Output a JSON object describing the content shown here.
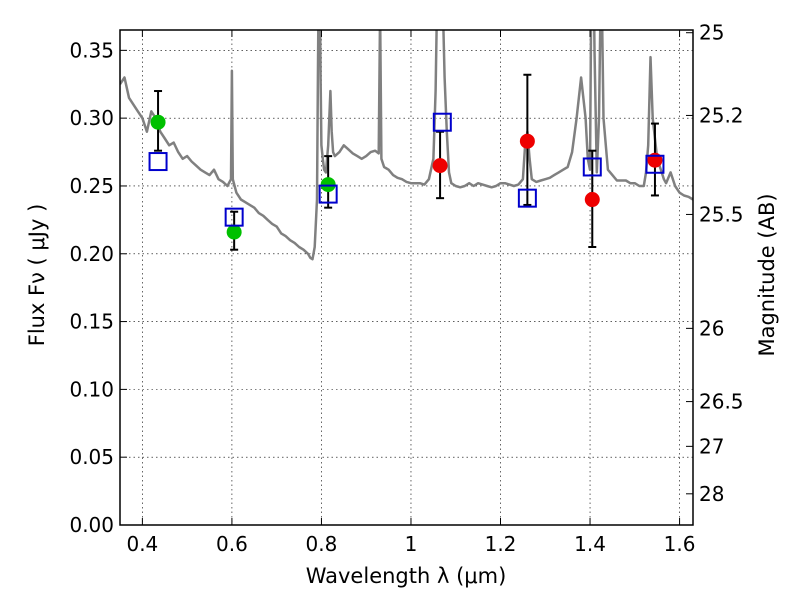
{
  "chart_data": {
    "type": "scatter",
    "xlabel": "Wavelength  λ (μm)",
    "ylabel": "Flux  Fν  ( μJy )",
    "y2label": "Magnitude (AB)",
    "xlim": [
      0.35,
      1.63
    ],
    "ylim": [
      0.0,
      0.365
    ],
    "grid": true,
    "x_ticks": [
      0.4,
      0.6,
      0.8,
      1.0,
      1.2,
      1.4,
      1.6
    ],
    "x_tick_labels": [
      "0.4",
      "0.6",
      "0.8",
      "1",
      "1.2",
      "1.4",
      "1.6"
    ],
    "y_ticks": [
      0.0,
      0.05,
      0.1,
      0.15,
      0.2,
      0.25,
      0.3,
      0.35
    ],
    "y_tick_labels": [
      "0.00",
      "0.05",
      "0.10",
      "0.15",
      "0.20",
      "0.25",
      "0.30",
      "0.35"
    ],
    "y2_ticks": [
      {
        "label": "25",
        "flux": 0.363
      },
      {
        "label": "25.2",
        "flux": 0.302
      },
      {
        "label": "25.5",
        "flux": 0.229
      },
      {
        "label": "26",
        "flux": 0.145
      },
      {
        "label": "26.5",
        "flux": 0.091
      },
      {
        "label": "27",
        "flux": 0.058
      },
      {
        "label": "28",
        "flux": 0.023
      }
    ],
    "colors": {
      "model": "#808080",
      "green": "#00c000",
      "red": "#ee0000",
      "square": "#0000cc",
      "errorbar": "#000000"
    },
    "series": [
      {
        "kind": "line",
        "color": "#808080",
        "x": [
          0.35,
          0.36,
          0.37,
          0.38,
          0.39,
          0.4,
          0.41,
          0.42,
          0.43,
          0.44,
          0.45,
          0.46,
          0.47,
          0.48,
          0.49,
          0.5,
          0.51,
          0.52,
          0.53,
          0.54,
          0.55,
          0.56,
          0.57,
          0.58,
          0.59,
          0.598,
          0.6,
          0.602,
          0.61,
          0.62,
          0.63,
          0.64,
          0.65,
          0.66,
          0.67,
          0.68,
          0.69,
          0.7,
          0.71,
          0.72,
          0.73,
          0.74,
          0.75,
          0.76,
          0.77,
          0.775,
          0.78,
          0.785,
          0.79,
          0.792,
          0.795,
          0.798,
          0.8,
          0.803,
          0.806,
          0.81,
          0.815,
          0.82,
          0.823,
          0.826,
          0.83,
          0.84,
          0.85,
          0.86,
          0.87,
          0.88,
          0.89,
          0.9,
          0.91,
          0.92,
          0.928,
          0.931,
          0.934,
          0.94,
          0.95,
          0.96,
          0.97,
          0.98,
          0.99,
          1.0,
          1.01,
          1.02,
          1.03,
          1.04,
          1.05,
          1.055,
          1.06,
          1.065,
          1.07,
          1.075,
          1.08,
          1.085,
          1.09,
          1.1,
          1.11,
          1.12,
          1.13,
          1.14,
          1.15,
          1.16,
          1.17,
          1.18,
          1.19,
          1.2,
          1.21,
          1.22,
          1.23,
          1.24,
          1.25,
          1.255,
          1.26,
          1.265,
          1.27,
          1.28,
          1.29,
          1.3,
          1.31,
          1.32,
          1.33,
          1.34,
          1.35,
          1.36,
          1.37,
          1.38,
          1.39,
          1.395,
          1.4,
          1.405,
          1.41,
          1.415,
          1.42,
          1.425,
          1.43,
          1.44,
          1.45,
          1.46,
          1.47,
          1.48,
          1.49,
          1.5,
          1.51,
          1.52,
          1.525,
          1.53,
          1.535,
          1.54,
          1.55,
          1.56,
          1.565,
          1.57,
          1.58,
          1.59,
          1.6,
          1.61,
          1.62,
          1.63
        ],
        "y": [
          0.325,
          0.33,
          0.315,
          0.31,
          0.305,
          0.3,
          0.29,
          0.305,
          0.3,
          0.29,
          0.285,
          0.28,
          0.282,
          0.275,
          0.27,
          0.272,
          0.268,
          0.265,
          0.262,
          0.26,
          0.258,
          0.262,
          0.255,
          0.253,
          0.25,
          0.255,
          0.335,
          0.255,
          0.245,
          0.24,
          0.238,
          0.236,
          0.234,
          0.23,
          0.228,
          0.225,
          0.222,
          0.22,
          0.215,
          0.213,
          0.21,
          0.208,
          0.205,
          0.203,
          0.2,
          0.197,
          0.196,
          0.205,
          0.24,
          0.33,
          0.45,
          0.33,
          0.28,
          0.27,
          0.262,
          0.26,
          0.28,
          0.32,
          0.29,
          0.275,
          0.272,
          0.275,
          0.28,
          0.277,
          0.274,
          0.272,
          0.27,
          0.272,
          0.275,
          0.276,
          0.274,
          0.38,
          0.27,
          0.264,
          0.262,
          0.258,
          0.256,
          0.255,
          0.253,
          0.252,
          0.252,
          0.252,
          0.251,
          0.255,
          0.27,
          0.32,
          0.42,
          0.5,
          0.4,
          0.33,
          0.29,
          0.26,
          0.252,
          0.25,
          0.249,
          0.25,
          0.252,
          0.25,
          0.252,
          0.251,
          0.25,
          0.249,
          0.25,
          0.252,
          0.252,
          0.251,
          0.25,
          0.251,
          0.255,
          0.28,
          0.29,
          0.27,
          0.255,
          0.253,
          0.254,
          0.255,
          0.256,
          0.258,
          0.26,
          0.262,
          0.264,
          0.275,
          0.3,
          0.33,
          0.3,
          0.27,
          0.262,
          0.5,
          0.35,
          0.26,
          0.3,
          0.42,
          0.3,
          0.262,
          0.258,
          0.254,
          0.254,
          0.254,
          0.252,
          0.252,
          0.25,
          0.25,
          0.26,
          0.28,
          0.345,
          0.3,
          0.27,
          0.26,
          0.255,
          0.252,
          0.26,
          0.25,
          0.245,
          0.243,
          0.242,
          0.24
        ]
      },
      {
        "kind": "points",
        "marker": "circle",
        "color": "#00c000",
        "x": [
          0.435,
          0.605,
          0.815
        ],
        "y": [
          0.297,
          0.216,
          0.251
        ],
        "yerr_low": [
          0.276,
          0.203,
          0.234
        ],
        "yerr_high": [
          0.32,
          0.231,
          0.272
        ]
      },
      {
        "kind": "points",
        "marker": "circle",
        "color": "#ee0000",
        "x": [
          1.065,
          1.26,
          1.405,
          1.545
        ],
        "y": [
          0.265,
          0.283,
          0.24,
          0.269
        ],
        "yerr_low": [
          0.241,
          0.236,
          0.205,
          0.243
        ],
        "yerr_high": [
          0.29,
          0.332,
          0.276,
          0.296
        ]
      },
      {
        "kind": "points",
        "marker": "square",
        "color": "#0000cc",
        "x": [
          0.435,
          0.605,
          0.815,
          1.07,
          1.26,
          1.405,
          1.545
        ],
        "y": [
          0.268,
          0.227,
          0.244,
          0.297,
          0.241,
          0.264,
          0.266
        ]
      }
    ]
  }
}
